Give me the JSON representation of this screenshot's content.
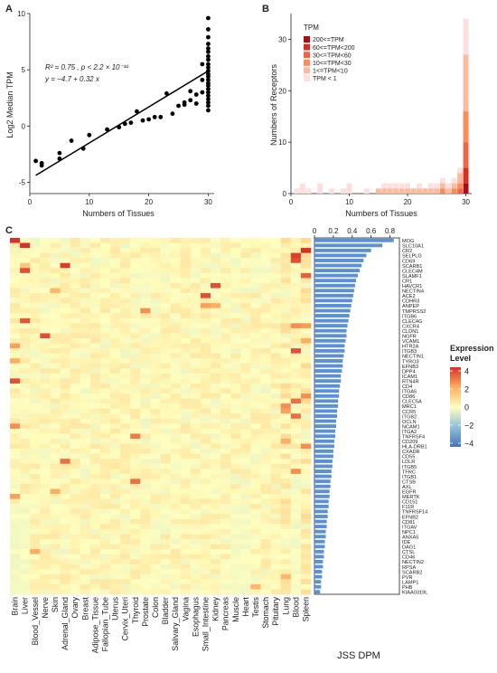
{
  "chart_data": [
    {
      "panel": "A",
      "type": "scatter",
      "xlabel": "Numbers of Tissues",
      "ylabel": "Log2 Median TPM",
      "xlim": [
        0,
        31
      ],
      "ylim": [
        -6,
        10
      ],
      "xticks": [
        "0",
        "10",
        "20",
        "30"
      ],
      "yticks": [
        "-5",
        "0",
        "5",
        "10"
      ],
      "annotation": {
        "line1": "R² = 0.75 , p < 2.2 × 10⁻¹⁶",
        "line2": "y = −4.7 + 0.32 x"
      },
      "fit": {
        "intercept": -4.7,
        "slope": 0.32,
        "x_range": [
          1,
          30
        ]
      },
      "points": [
        [
          1,
          -3.1
        ],
        [
          2,
          -3.5
        ],
        [
          2,
          -3.3
        ],
        [
          5,
          -2.4
        ],
        [
          5,
          -2.9
        ],
        [
          7,
          -1.3
        ],
        [
          9,
          -2.0
        ],
        [
          10,
          -0.8
        ],
        [
          13,
          -0.3
        ],
        [
          15,
          -0.1
        ],
        [
          16,
          0.2
        ],
        [
          17,
          0.3
        ],
        [
          18,
          1.3
        ],
        [
          19,
          0.5
        ],
        [
          20,
          0.6
        ],
        [
          21,
          0.8
        ],
        [
          22,
          0.8
        ],
        [
          23,
          2.9
        ],
        [
          24,
          1.1
        ],
        [
          25,
          1.8
        ],
        [
          26,
          2.1
        ],
        [
          26,
          1.9
        ],
        [
          27,
          3.1
        ],
        [
          27,
          2.3
        ],
        [
          28,
          2.0
        ],
        [
          28,
          2.8
        ],
        [
          29,
          3.0
        ],
        [
          29,
          4.1
        ],
        [
          29,
          5.5
        ],
        [
          30,
          9.6
        ],
        [
          30,
          8.6
        ],
        [
          30,
          7.9
        ],
        [
          30,
          7.3
        ],
        [
          30,
          6.9
        ],
        [
          30,
          6.6
        ],
        [
          30,
          6.2
        ],
        [
          30,
          5.9
        ],
        [
          30,
          5.5
        ],
        [
          30,
          5.2
        ],
        [
          30,
          4.9
        ],
        [
          30,
          4.6
        ],
        [
          30,
          4.4
        ],
        [
          30,
          4.1
        ],
        [
          30,
          3.8
        ],
        [
          30,
          3.6
        ],
        [
          30,
          3.3
        ],
        [
          30,
          3.0
        ],
        [
          30,
          2.7
        ],
        [
          30,
          2.4
        ],
        [
          30,
          2.1
        ],
        [
          30,
          1.8
        ],
        [
          30,
          1.4
        ]
      ]
    },
    {
      "panel": "B",
      "type": "bar",
      "stacked": true,
      "xlabel": "Numbers of Tissues",
      "ylabel": "Numbers of Receptors",
      "xlim": [
        0,
        31
      ],
      "ylim": [
        0,
        35
      ],
      "xticks": [
        "0",
        "10",
        "20",
        "30"
      ],
      "yticks": [
        "0",
        "10",
        "20",
        "30"
      ],
      "legend_title": "TPM",
      "legend_position": "top-left",
      "series": [
        {
          "name": "200<=TPM",
          "color": "#a50f15"
        },
        {
          "name": "60<=TPM<200",
          "color": "#d7301f"
        },
        {
          "name": "30<=TPM<60",
          "color": "#ef6548"
        },
        {
          "name": "10<=TPM<30",
          "color": "#fc8d59"
        },
        {
          "name": "1<=TPM<10",
          "color": "#fcbba1"
        },
        {
          "name": "TPM < 1",
          "color": "#fde0dd"
        }
      ],
      "bars": [
        {
          "x": 1,
          "stack": [
            0,
            0,
            0,
            0,
            0,
            1
          ]
        },
        {
          "x": 2,
          "stack": [
            0,
            0,
            0,
            0,
            0,
            2
          ]
        },
        {
          "x": 3,
          "stack": [
            0,
            0,
            0,
            0,
            0,
            1
          ]
        },
        {
          "x": 5,
          "stack": [
            0,
            0,
            0,
            0,
            0,
            2
          ]
        },
        {
          "x": 7,
          "stack": [
            0,
            0,
            0,
            0,
            0,
            1
          ]
        },
        {
          "x": 9,
          "stack": [
            0,
            0,
            0,
            0,
            0,
            1
          ]
        },
        {
          "x": 10,
          "stack": [
            0,
            0,
            0,
            0,
            0,
            2
          ]
        },
        {
          "x": 13,
          "stack": [
            0,
            0,
            0,
            0,
            0,
            1
          ]
        },
        {
          "x": 15,
          "stack": [
            0,
            0,
            0,
            0,
            1,
            0
          ]
        },
        {
          "x": 16,
          "stack": [
            0,
            0,
            0,
            0,
            1,
            1
          ]
        },
        {
          "x": 17,
          "stack": [
            0,
            0,
            0,
            0,
            1,
            1
          ]
        },
        {
          "x": 18,
          "stack": [
            0,
            0,
            0,
            0,
            1,
            1
          ]
        },
        {
          "x": 19,
          "stack": [
            0,
            0,
            0,
            0,
            1,
            1
          ]
        },
        {
          "x": 20,
          "stack": [
            0,
            0,
            0,
            0,
            1,
            1
          ]
        },
        {
          "x": 21,
          "stack": [
            0,
            0,
            0,
            0,
            1,
            0
          ]
        },
        {
          "x": 22,
          "stack": [
            0,
            0,
            0,
            0,
            1,
            1
          ]
        },
        {
          "x": 23,
          "stack": [
            0,
            0,
            0,
            0,
            1,
            0
          ]
        },
        {
          "x": 24,
          "stack": [
            0,
            0,
            0,
            0,
            1,
            1
          ]
        },
        {
          "x": 25,
          "stack": [
            0,
            0,
            0,
            0,
            1,
            1
          ]
        },
        {
          "x": 26,
          "stack": [
            0,
            0,
            0,
            1,
            1,
            1
          ]
        },
        {
          "x": 27,
          "stack": [
            0,
            0,
            0,
            0,
            1,
            1
          ]
        },
        {
          "x": 28,
          "stack": [
            0,
            0,
            0,
            1,
            1,
            1
          ]
        },
        {
          "x": 29,
          "stack": [
            0,
            0,
            1,
            1,
            2,
            1
          ]
        },
        {
          "x": 30,
          "stack": [
            2,
            3,
            5,
            6,
            11,
            7
          ]
        }
      ]
    },
    {
      "panel": "C",
      "type": "heatmap",
      "legend_title": [
        "Expression",
        "Level"
      ],
      "legend_ticks": [
        "4",
        "2",
        "0",
        "−2",
        "−4"
      ],
      "range": [
        -4,
        4
      ],
      "columns": [
        "Brain",
        "Liver",
        "Blood_Vessel",
        "Nerve",
        "Skin",
        "Adrenal_Gland",
        "Ovary",
        "Breast",
        "Adipose_Tissue",
        "Fallopian_Tube",
        "Uterus",
        "Cervix_Uteri",
        "Thyroid",
        "Prostate",
        "Colon",
        "Bladder",
        "Salivary_Gland",
        "Vagina",
        "Esophagus",
        "Small_Intestine",
        "Kidney",
        "Pancreas",
        "Muscle",
        "Heart",
        "Testis",
        "Stomach",
        "Pituitary",
        "Lung",
        "Blood",
        "Spleen"
      ],
      "rows": [
        "MOG",
        "SLC10A1",
        "CR2",
        "SELPLG",
        "CD69",
        "SCARB1",
        "CLEC4M",
        "SLAMF1",
        "CR1",
        "HAVCR1",
        "NECTIN4",
        "ACE2",
        "CDHR3",
        "ANPEP",
        "TMPRSS2",
        "ITGB6",
        "CLEC4G",
        "CXCR4",
        "CLDN1",
        "NGFR",
        "VCAM1",
        "HTR2A",
        "ITGB3",
        "NECTIN1",
        "TYRO3",
        "EFNB3",
        "DPP4",
        "ICAM1",
        "RTN4R",
        "CD4",
        "ITGA5",
        "CD86",
        "CLEC5A",
        "MRC1",
        "CCR5",
        "ITGB2",
        "OCLN",
        "NCAM1",
        "ITGA2",
        "TNFRSF4",
        "CD209",
        "HLA-DRB1",
        "CXADR",
        "CD55",
        "LDLR",
        "ITGB5",
        "TFRC",
        "ITGB1",
        "CTSB",
        "AXL",
        "EGFR",
        "MERTK",
        "CD151",
        "F11R",
        "TNFRSF14",
        "EFNB2",
        "CD81",
        "ITGAV",
        "NPC1",
        "ANXA5",
        "IDE",
        "DAG1",
        "CTSL",
        "CD46",
        "NECTIN2",
        "RPSA",
        "SCARB2",
        "PVR",
        "LAMP1",
        "PHB",
        "KIAA0319L"
      ],
      "highlights": [
        {
          "row": "MOG",
          "col": "Brain",
          "value": 4
        },
        {
          "row": "SLC10A1",
          "col": "Liver",
          "value": 4
        },
        {
          "row": "CR2",
          "col": "Spleen",
          "value": 4
        },
        {
          "row": "SELPLG",
          "col": "Blood",
          "value": 3.8
        },
        {
          "row": "CD69",
          "col": "Blood",
          "value": 3.5
        },
        {
          "row": "SCARB1",
          "col": "Adrenal_Gland",
          "value": 3.8
        },
        {
          "row": "SCARB1",
          "col": "Liver",
          "value": 1.4
        },
        {
          "row": "CLEC4M",
          "col": "Liver",
          "value": 3.5
        },
        {
          "row": "SLAMF1",
          "col": "Spleen",
          "value": 3.2
        },
        {
          "row": "HAVCR1",
          "col": "Kidney",
          "value": 3.5
        },
        {
          "row": "NECTIN4",
          "col": "Skin",
          "value": 1.8
        },
        {
          "row": "ACE2",
          "col": "Small_Intestine",
          "value": 3.5
        },
        {
          "row": "ANPEP",
          "col": "Small_Intestine",
          "value": 2.2
        },
        {
          "row": "ANPEP",
          "col": "Kidney",
          "value": 2.0
        },
        {
          "row": "TMPRSS2",
          "col": "Prostate",
          "value": 2.5
        },
        {
          "row": "CLEC4G",
          "col": "Liver",
          "value": 3.4
        },
        {
          "row": "CXCR4",
          "col": "Blood",
          "value": 2.5
        },
        {
          "row": "CXCR4",
          "col": "Spleen",
          "value": 2.3
        },
        {
          "row": "NGFR",
          "col": "Nerve",
          "value": 3.5
        },
        {
          "row": "VCAM1",
          "col": "Spleen",
          "value": 2.0
        },
        {
          "row": "HTR2A",
          "col": "Brain",
          "value": 2.2
        },
        {
          "row": "ITGB3",
          "col": "Blood",
          "value": 3.5
        },
        {
          "row": "TYRO3",
          "col": "Brain",
          "value": 2.0
        },
        {
          "row": "RTN4R",
          "col": "Brain",
          "value": 3.5
        },
        {
          "row": "CD86",
          "col": "Spleen",
          "value": 2.5
        },
        {
          "row": "CLEC5A",
          "col": "Blood",
          "value": 3.0
        },
        {
          "row": "MRC1",
          "col": "Lung",
          "value": 2.5
        },
        {
          "row": "CCR5",
          "col": "Lung",
          "value": 2.2
        },
        {
          "row": "ITGB2",
          "col": "Blood",
          "value": 3.0
        },
        {
          "row": "NCAM1",
          "col": "Brain",
          "value": 2.5
        },
        {
          "row": "TNFRSF4",
          "col": "Thyroid",
          "value": 2.8
        },
        {
          "row": "CD209",
          "col": "Lung",
          "value": 2.0
        },
        {
          "row": "HLA-DRB1",
          "col": "Spleen",
          "value": 2.5
        },
        {
          "row": "LDLR",
          "col": "Adrenal_Gland",
          "value": 3.0
        },
        {
          "row": "TFRC",
          "col": "Blood",
          "value": 2.5
        },
        {
          "row": "CTSB",
          "col": "Thyroid",
          "value": 3.0
        },
        {
          "row": "EGFR",
          "col": "Skin",
          "value": 2.0
        },
        {
          "row": "MERTK",
          "col": "Brain",
          "value": 2.2
        },
        {
          "row": "CTSL",
          "col": "Blood_Vessel",
          "value": 2.0
        },
        {
          "row": "PVR",
          "col": "Lung",
          "value": 1.8
        },
        {
          "row": "PHB",
          "col": "Testis",
          "value": 1.8
        }
      ]
    },
    {
      "panel": "C-right",
      "type": "bar",
      "orientation": "horizontal",
      "xlabel": "JSS DPM",
      "xlim": [
        0,
        0.9
      ],
      "xticks": [
        "0",
        "0.2",
        "0.4",
        "0.6",
        "0.8"
      ],
      "bar_color": "#5b8fd6",
      "values": [
        0.84,
        0.72,
        0.6,
        0.55,
        0.52,
        0.5,
        0.48,
        0.46,
        0.44,
        0.43,
        0.42,
        0.41,
        0.4,
        0.39,
        0.38,
        0.37,
        0.36,
        0.35,
        0.34,
        0.34,
        0.33,
        0.32,
        0.32,
        0.31,
        0.3,
        0.3,
        0.29,
        0.28,
        0.28,
        0.27,
        0.26,
        0.26,
        0.25,
        0.25,
        0.24,
        0.24,
        0.23,
        0.23,
        0.22,
        0.22,
        0.21,
        0.21,
        0.2,
        0.2,
        0.19,
        0.19,
        0.18,
        0.18,
        0.17,
        0.17,
        0.16,
        0.16,
        0.15,
        0.15,
        0.14,
        0.14,
        0.13,
        0.13,
        0.12,
        0.12,
        0.11,
        0.11,
        0.1,
        0.1,
        0.09,
        0.09,
        0.08,
        0.08,
        0.07,
        0.07,
        0.06
      ]
    }
  ],
  "panel_labels": {
    "a": "A",
    "b": "B",
    "c": "C"
  }
}
